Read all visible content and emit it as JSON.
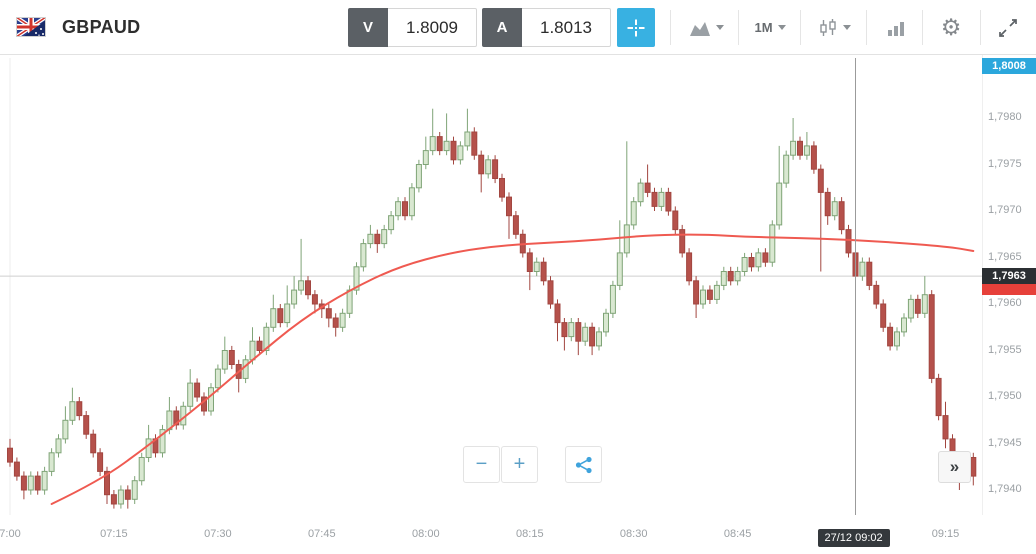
{
  "window": {
    "title": "GBPAUD"
  },
  "toolbar": {
    "symbol": "GBPAUD",
    "sell": {
      "label": "V",
      "price": "1.8009"
    },
    "buy": {
      "label": "A",
      "price": "1.8013"
    },
    "timeframe": "1M",
    "icons": [
      "gbpaud-flag",
      "crosshair",
      "chart-type",
      "timeframe-dropdown",
      "candle-style",
      "indicators",
      "settings-gear",
      "fullscreen-expand"
    ]
  },
  "controls": {
    "zoom_out": "−",
    "zoom_in": "+",
    "fast_forward": "»"
  },
  "chart_data": {
    "type": "candlestick",
    "title": "GBPAUD 1M",
    "symbol": "GBPAUD",
    "interval": "1M",
    "grid": false,
    "legend": false,
    "price_base": 1.79,
    "pip_factor": 0.0001,
    "first_candle_time": "07:00",
    "minutes_per_candle": 1,
    "ylim": [
      1.7938,
      1.7987
    ],
    "xlim": [
      "07:00",
      "09:19"
    ],
    "x_ticks": [
      {
        "i": 0,
        "label": "7:00"
      },
      {
        "i": 15,
        "label": "07:15"
      },
      {
        "i": 30,
        "label": "07:30"
      },
      {
        "i": 45,
        "label": "07:45"
      },
      {
        "i": 60,
        "label": "08:00"
      },
      {
        "i": 75,
        "label": "08:15"
      },
      {
        "i": 90,
        "label": "08:30"
      },
      {
        "i": 105,
        "label": "08:45"
      },
      {
        "i": 120,
        "label": "09:00"
      },
      {
        "i": 135,
        "label": "09:15"
      }
    ],
    "y_ticks": [
      {
        "pips": 80,
        "label": "1,7980"
      },
      {
        "pips": 75,
        "label": "1,7975"
      },
      {
        "pips": 70,
        "label": "1,7970"
      },
      {
        "pips": 65,
        "label": "1,7965"
      },
      {
        "pips": 60,
        "label": "1,7960"
      },
      {
        "pips": 55,
        "label": "1,7955"
      },
      {
        "pips": 50,
        "label": "1,7950"
      },
      {
        "pips": 45,
        "label": "1,7945"
      },
      {
        "pips": 40,
        "label": "1,7940"
      }
    ],
    "badges": {
      "top": {
        "label": "1,8008"
      },
      "price": {
        "label": "1,7963",
        "pips": 63
      },
      "time": {
        "label": "27/12 09:02",
        "i": 122
      }
    },
    "crosshair": {
      "i": 122,
      "price_pips": 63
    },
    "candles": [
      [
        44.5,
        45.5,
        42.5,
        43
      ],
      [
        43,
        43.5,
        41,
        41.5
      ],
      [
        41.5,
        42,
        39,
        40
      ],
      [
        40,
        42,
        39.5,
        41.5
      ],
      [
        41.5,
        42,
        39.5,
        40
      ],
      [
        40,
        42.5,
        39.5,
        42
      ],
      [
        42,
        44.5,
        41.5,
        44
      ],
      [
        44,
        46,
        43.5,
        45.5
      ],
      [
        45.5,
        49,
        45,
        47.5
      ],
      [
        47.5,
        51,
        47,
        49.5
      ],
      [
        49.5,
        50,
        47.5,
        48
      ],
      [
        48,
        48.5,
        45.5,
        46
      ],
      [
        46,
        46.5,
        43.5,
        44
      ],
      [
        44,
        44.5,
        41.5,
        42
      ],
      [
        42,
        42.5,
        38.5,
        39.5
      ],
      [
        39.5,
        40,
        38,
        38.5
      ],
      [
        38.5,
        40.5,
        38,
        40
      ],
      [
        40,
        40.5,
        38,
        39
      ],
      [
        39,
        41.5,
        38.5,
        41
      ],
      [
        41,
        44,
        40.5,
        43.5
      ],
      [
        43.5,
        47,
        43,
        45.5
      ],
      [
        45.5,
        46,
        43.5,
        44
      ],
      [
        44,
        47,
        43.5,
        46.5
      ],
      [
        46.5,
        50,
        46,
        48.5
      ],
      [
        48.5,
        49,
        46.5,
        47
      ],
      [
        47,
        49.5,
        46.5,
        49
      ],
      [
        49,
        53,
        48.5,
        51.5
      ],
      [
        51.5,
        52,
        49.5,
        50
      ],
      [
        50,
        50.5,
        48,
        48.5
      ],
      [
        48.5,
        51.5,
        48,
        51
      ],
      [
        51,
        53.5,
        50.5,
        53
      ],
      [
        53,
        56.5,
        52.5,
        55
      ],
      [
        55,
        55.5,
        53,
        53.5
      ],
      [
        53.5,
        54,
        50.5,
        52
      ],
      [
        52,
        54.5,
        51.5,
        54
      ],
      [
        54,
        57.5,
        53.5,
        56
      ],
      [
        56,
        56.5,
        54.5,
        55
      ],
      [
        55,
        58,
        54.5,
        57.5
      ],
      [
        57.5,
        61,
        57,
        59.5
      ],
      [
        59.5,
        60,
        57.5,
        58
      ],
      [
        58,
        62,
        57.5,
        60
      ],
      [
        60,
        63,
        59.5,
        61.5
      ],
      [
        61.5,
        67,
        61,
        62.5
      ],
      [
        62.5,
        63,
        60.5,
        61
      ],
      [
        61,
        61.5,
        59,
        60
      ],
      [
        60,
        60.5,
        58.5,
        59.5
      ],
      [
        59.5,
        60,
        57.5,
        58.5
      ],
      [
        58.5,
        59,
        56.5,
        57.5
      ],
      [
        57.5,
        59.5,
        57,
        59
      ],
      [
        59,
        62,
        58.5,
        61.5
      ],
      [
        61.5,
        64.5,
        61,
        64
      ],
      [
        64,
        67,
        63.5,
        66.5
      ],
      [
        66.5,
        68.5,
        66,
        67.5
      ],
      [
        67.5,
        68,
        65.5,
        66.5
      ],
      [
        66.5,
        68.5,
        66,
        68
      ],
      [
        68,
        70,
        67.5,
        69.5
      ],
      [
        69.5,
        71.5,
        69,
        71
      ],
      [
        71,
        71.5,
        69,
        69.5
      ],
      [
        69.5,
        73,
        69,
        72.5
      ],
      [
        72.5,
        75.5,
        72,
        75
      ],
      [
        75,
        78,
        74.5,
        76.5
      ],
      [
        76.5,
        81,
        76,
        78
      ],
      [
        78,
        78.5,
        76,
        76.5
      ],
      [
        76.5,
        80.5,
        76,
        77.5
      ],
      [
        77.5,
        78,
        75,
        75.5
      ],
      [
        75.5,
        77.5,
        75,
        77
      ],
      [
        77,
        81,
        76.5,
        78.5
      ],
      [
        78.5,
        79,
        75.5,
        76
      ],
      [
        76,
        76.5,
        72,
        74
      ],
      [
        74,
        76,
        73.5,
        75.5
      ],
      [
        75.5,
        76,
        73,
        73.5
      ],
      [
        73.5,
        74,
        71,
        71.5
      ],
      [
        71.5,
        72,
        67,
        69.5
      ],
      [
        69.5,
        70,
        67,
        67.5
      ],
      [
        67.5,
        68,
        65,
        65.5
      ],
      [
        65.5,
        66,
        61.5,
        63.5
      ],
      [
        63.5,
        65,
        63,
        64.5
      ],
      [
        64.5,
        65,
        62,
        62.5
      ],
      [
        62.5,
        63,
        59.5,
        60
      ],
      [
        60,
        60.5,
        56,
        58
      ],
      [
        58,
        58.5,
        55,
        56.5
      ],
      [
        56.5,
        58.5,
        56,
        58
      ],
      [
        58,
        58.5,
        54.5,
        56
      ],
      [
        56,
        58,
        55.5,
        57.5
      ],
      [
        57.5,
        58,
        54.5,
        55.5
      ],
      [
        55.5,
        57.5,
        55,
        57
      ],
      [
        57,
        59.5,
        56.5,
        59
      ],
      [
        59,
        62.5,
        58.5,
        62
      ],
      [
        62,
        69,
        61.5,
        65.5
      ],
      [
        65.5,
        77.5,
        65,
        68.5
      ],
      [
        68.5,
        71.5,
        68,
        71
      ],
      [
        71,
        73.5,
        70.5,
        73
      ],
      [
        73,
        75,
        71.5,
        72
      ],
      [
        72,
        72.5,
        70,
        70.5
      ],
      [
        70.5,
        72.5,
        70,
        72
      ],
      [
        72,
        72.5,
        69.5,
        70
      ],
      [
        70,
        70.5,
        67.5,
        68
      ],
      [
        68,
        68.5,
        65,
        65.5
      ],
      [
        65.5,
        66,
        62,
        62.5
      ],
      [
        62.5,
        63,
        58.5,
        60
      ],
      [
        60,
        62,
        59.5,
        61.5
      ],
      [
        61.5,
        62,
        60,
        60.5
      ],
      [
        60.5,
        62.5,
        60,
        62
      ],
      [
        62,
        64,
        61.5,
        63.5
      ],
      [
        63.5,
        64,
        62,
        62.5
      ],
      [
        62.5,
        64,
        62,
        63.5
      ],
      [
        63.5,
        65.5,
        63,
        65
      ],
      [
        65,
        65.5,
        63.5,
        64
      ],
      [
        64,
        66,
        63.5,
        65.5
      ],
      [
        65.5,
        66,
        64,
        64.5
      ],
      [
        64.5,
        69,
        64,
        68.5
      ],
      [
        68.5,
        77,
        68,
        73
      ],
      [
        73,
        76.5,
        72.5,
        76
      ],
      [
        76,
        80,
        75.5,
        77.5
      ],
      [
        77.5,
        78,
        75.5,
        76
      ],
      [
        76,
        78.5,
        75.5,
        77
      ],
      [
        77,
        77.5,
        74,
        74.5
      ],
      [
        74.5,
        75,
        63.5,
        72
      ],
      [
        72,
        72.5,
        68.5,
        69.5
      ],
      [
        69.5,
        71.5,
        69,
        71
      ],
      [
        71,
        71.5,
        67.5,
        68
      ],
      [
        68,
        68.5,
        65,
        65.5
      ],
      [
        65.5,
        66,
        62.5,
        63
      ],
      [
        63,
        65,
        62.5,
        64.5
      ],
      [
        64.5,
        65,
        61.5,
        62
      ],
      [
        62,
        62.5,
        59.5,
        60
      ],
      [
        60,
        60.5,
        57,
        57.5
      ],
      [
        57.5,
        58,
        55,
        55.5
      ],
      [
        55.5,
        57.5,
        55,
        57
      ],
      [
        57,
        59,
        56.5,
        58.5
      ],
      [
        58.5,
        61,
        58,
        60.5
      ],
      [
        60.5,
        61,
        58.5,
        59
      ],
      [
        59,
        63,
        58.5,
        61
      ],
      [
        61,
        61.5,
        51.5,
        52
      ],
      [
        52,
        52.5,
        47.5,
        48
      ],
      [
        48,
        49.5,
        44.5,
        45.5
      ],
      [
        45.5,
        46,
        42.5,
        43.5
      ],
      [
        43.5,
        44,
        40,
        42
      ],
      [
        42,
        44,
        41.5,
        43.5
      ],
      [
        43.5,
        44,
        40.5,
        41.5
      ]
    ],
    "ma": {
      "name": "moving-average",
      "color": "#ef5a51",
      "points": [
        [
          6,
          38.5
        ],
        [
          13,
          41
        ],
        [
          20,
          44.8
        ],
        [
          28,
          49.5
        ],
        [
          35,
          54
        ],
        [
          42,
          58.3
        ],
        [
          49,
          61.5
        ],
        [
          56,
          64
        ],
        [
          64,
          65.6
        ],
        [
          71,
          66.3
        ],
        [
          78,
          66.6
        ],
        [
          85,
          66.9
        ],
        [
          92,
          67.4
        ],
        [
          100,
          67.5
        ],
        [
          107,
          67.2
        ],
        [
          114,
          67.1
        ],
        [
          121,
          66.9
        ],
        [
          128,
          66.6
        ],
        [
          136,
          66.1
        ],
        [
          139,
          65.7
        ]
      ]
    },
    "colors": {
      "bull_fill": "#d9e8d1",
      "bull_stroke": "#7fa477",
      "bear_fill": "#b5514b",
      "bear_stroke": "#a24640",
      "ma_line": "#ef5a51",
      "accent_blue": "#38b1e2",
      "top_badge_bg": "#2ba7dc",
      "price_badge_bg": "#2b2f33",
      "alert_red": "#e6403a",
      "time_badge_bg": "#34383c"
    }
  }
}
